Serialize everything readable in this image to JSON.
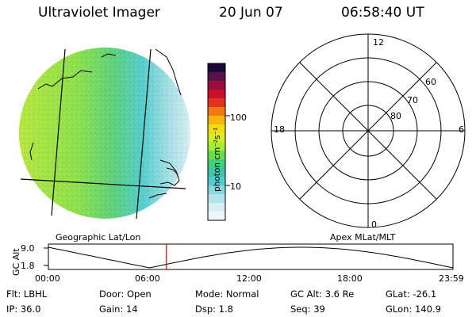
{
  "header": {
    "instrument": "Ultraviolet Imager",
    "date": "20 Jun 07",
    "time": "06:58:40 UT"
  },
  "colorbar": {
    "label": "photon cm⁻²s⁻¹",
    "ticks": [
      "100",
      "10"
    ],
    "colors": [
      "#1a0a3a",
      "#5a1048",
      "#9a0e3e",
      "#c8102a",
      "#e43222",
      "#f07a12",
      "#f6b40c",
      "#f2dc10",
      "#d6ee22",
      "#a8ec34",
      "#6ade4a",
      "#3ed07a",
      "#3ec6a8",
      "#52cccc",
      "#86d8de",
      "#b4e4ea",
      "#d8eef2",
      "#edf7f8"
    ],
    "colors_note_none": ""
  },
  "left_panel": {
    "caption": "Geographic Lat/Lon"
  },
  "right_panel": {
    "caption": "Apex MLat/MLT",
    "mlt_labels": {
      "top": "12",
      "bottom": "0",
      "left": "18",
      "right": "6"
    },
    "mlat_labels": [
      "60",
      "70",
      "80"
    ]
  },
  "alt_plot": {
    "ylabel": "GC Alt",
    "yticks": [
      "9.0",
      "1.8"
    ],
    "xticks": [
      "00:00",
      "06:00",
      "12:00",
      "18:00",
      "23:59"
    ],
    "marker_time_hours": 7.0,
    "marker_color": "#e00000"
  },
  "status": {
    "row1": [
      {
        "label": "Flt:",
        "value": "LBHL"
      },
      {
        "label": "Door:",
        "value": "Open"
      },
      {
        "label": "Mode:",
        "value": "Normal"
      },
      {
        "label": "GC Alt:",
        "value": "3.6 Re"
      },
      {
        "label": "GLat:",
        "value": "-26.1"
      }
    ],
    "row2": [
      {
        "label": "IP:",
        "value": "36.0"
      },
      {
        "label": "Gain:",
        "value": "14"
      },
      {
        "label": "Dsp:",
        "value": "1.8"
      },
      {
        "label": "Seq:",
        "value": "39"
      },
      {
        "label": "GLon:",
        "value": "140.9"
      }
    ]
  }
}
